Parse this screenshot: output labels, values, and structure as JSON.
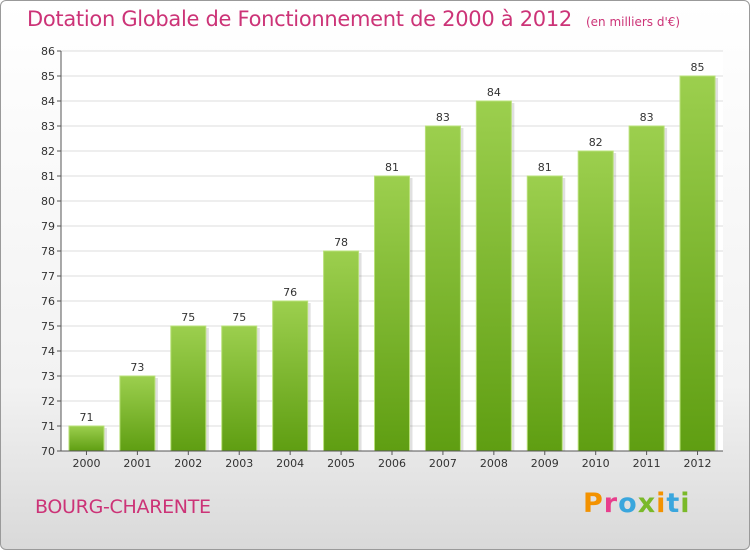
{
  "header": {
    "title": "Dotation Globale de Fonctionnement de 2000 à 2012",
    "subtitle": "(en milliers d'€)"
  },
  "footer": {
    "commune": "BOURG-CHARENTE",
    "logo": "Proxiti",
    "logo_colors": [
      "#f39200",
      "#e83e8c",
      "#3aa6dd",
      "#7ab929",
      "#f39200",
      "#3aa6dd",
      "#7ab929"
    ]
  },
  "chart_data": {
    "type": "bar",
    "title": "Dotation Globale de Fonctionnement de 2000 à 2012",
    "subtitle": "(en milliers d'€)",
    "categories": [
      "2000",
      "2001",
      "2002",
      "2003",
      "2004",
      "2005",
      "2006",
      "2007",
      "2008",
      "2009",
      "2010",
      "2011",
      "2012"
    ],
    "values": [
      71,
      73,
      75,
      75,
      76,
      78,
      81,
      83,
      84,
      81,
      82,
      83,
      85
    ],
    "ylim": [
      70,
      86
    ],
    "yticks": [
      70,
      71,
      72,
      73,
      74,
      75,
      76,
      77,
      78,
      79,
      80,
      81,
      82,
      83,
      84,
      85,
      86
    ],
    "grid": true,
    "bar_color_top": "#9ccf4e",
    "bar_color_bottom": "#5f9e12"
  }
}
